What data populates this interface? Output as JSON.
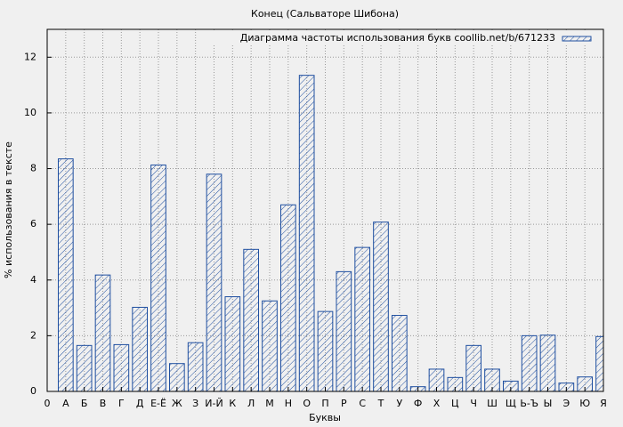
{
  "chart_data": {
    "type": "bar",
    "title": "Конец (Сальваторе Шибона)",
    "xlabel": "Буквы",
    "ylabel": "% использования в тексте",
    "x": [
      1,
      2,
      3,
      4,
      5,
      6,
      7,
      8,
      9,
      10,
      11,
      12,
      13,
      14,
      15,
      16,
      17,
      18,
      19,
      20,
      21,
      22,
      23,
      24,
      25,
      26,
      27,
      28,
      29,
      30
    ],
    "series": [
      {
        "name": "Диаграмма частоты использования букв coollib.net/b/671233",
        "color": "#1f4fa0",
        "values": [
          8.35,
          1.65,
          4.18,
          1.68,
          3.02,
          8.13,
          1.0,
          1.75,
          7.8,
          3.4,
          5.1,
          3.25,
          6.7,
          11.35,
          2.87,
          4.3,
          5.17,
          6.08,
          2.73,
          0.17,
          0.8,
          0.5,
          1.65,
          0.8,
          0.37,
          2.0,
          2.02,
          0.3,
          0.52,
          1.97
        ]
      }
    ],
    "xlim": [
      0,
      30
    ],
    "xticks": [
      0,
      {
        "value": 1,
        "label": "А"
      },
      {
        "value": 2,
        "label": "Б"
      },
      {
        "value": 3,
        "label": "В"
      },
      {
        "value": 4,
        "label": "Г"
      },
      {
        "value": 5,
        "label": "Д"
      },
      {
        "value": 6,
        "label": "Е-Ё"
      },
      {
        "value": 7,
        "label": "Ж"
      },
      {
        "value": 8,
        "label": "З"
      },
      {
        "value": 9,
        "label": "И-Й"
      },
      {
        "value": 10,
        "label": "К"
      },
      {
        "value": 11,
        "label": "Л"
      },
      {
        "value": 12,
        "label": "М"
      },
      {
        "value": 13,
        "label": "Н"
      },
      {
        "value": 14,
        "label": "О"
      },
      {
        "value": 15,
        "label": "П"
      },
      {
        "value": 16,
        "label": "Р"
      },
      {
        "value": 17,
        "label": "С"
      },
      {
        "value": 18,
        "label": "Т"
      },
      {
        "value": 19,
        "label": "У"
      },
      {
        "value": 20,
        "label": "Ф"
      },
      {
        "value": 21,
        "label": "Х"
      },
      {
        "value": 22,
        "label": "Ц"
      },
      {
        "value": 23,
        "label": "Ч"
      },
      {
        "value": 24,
        "label": "Ш"
      },
      {
        "value": 25,
        "label": "Щ"
      },
      {
        "value": 26,
        "label": "Ь-Ъ"
      },
      {
        "value": 27,
        "label": "Ы"
      },
      {
        "value": 28,
        "label": "Э"
      },
      {
        "value": 29,
        "label": "Ю"
      },
      {
        "value": 30,
        "label": "Я"
      }
    ],
    "ylim": [
      0,
      13
    ],
    "yticks": [
      0,
      2,
      4,
      6,
      8,
      10,
      12
    ],
    "grid": true,
    "legend": "top-right"
  }
}
